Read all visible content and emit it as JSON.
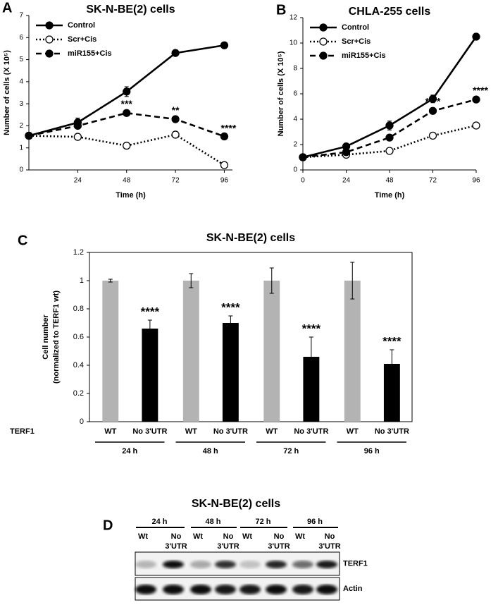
{
  "chart_data": [
    {
      "type": "line",
      "panel": "A",
      "title": "SK-N-BE(2) cells",
      "xlabel": "Time (h)",
      "ylabel": "Number of cells (X 10⁵)",
      "x": [
        0,
        24,
        48,
        72,
        96
      ],
      "xlim": [
        0,
        100
      ],
      "xticks": [
        24,
        48,
        72,
        96
      ],
      "ylim": [
        0,
        7
      ],
      "yticks": [
        0,
        1,
        2,
        3,
        4,
        5,
        6,
        7
      ],
      "legend": "top-left",
      "series": [
        {
          "name": "Control",
          "color": "#000000",
          "dash": "solid",
          "marker_fill": "#000000",
          "values": [
            1.55,
            2.15,
            3.55,
            5.3,
            5.65
          ],
          "errors": [
            0.08,
            0.2,
            0.22,
            0.08,
            0.12
          ]
        },
        {
          "name": "Scr+Cis",
          "color": "#000000",
          "dash": "dotted",
          "marker_fill": "#ffffff",
          "values": [
            1.55,
            1.5,
            1.1,
            1.6,
            0.22
          ],
          "errors": [
            0.06,
            0.1,
            0.12,
            0.1,
            0.05
          ]
        },
        {
          "name": "miR155+Cis",
          "color": "#000000",
          "dash": "dashed",
          "marker_fill": "#000000",
          "values": [
            1.55,
            2.0,
            2.58,
            2.3,
            1.52
          ],
          "errors": [
            0.06,
            0.1,
            0.1,
            0.08,
            0.06
          ],
          "annotations": [
            null,
            null,
            "***",
            "**",
            "****"
          ]
        }
      ]
    },
    {
      "type": "line",
      "panel": "B",
      "title": "CHLA-255 cells",
      "xlabel": "Time (h)",
      "ylabel": "Number of cells (X 10⁵)",
      "x": [
        0,
        24,
        48,
        72,
        96
      ],
      "xlim": [
        0,
        96
      ],
      "xticks": [
        0,
        24,
        48,
        72,
        96
      ],
      "ylim": [
        0,
        12
      ],
      "yticks": [
        0,
        2,
        4,
        6,
        8,
        10,
        12
      ],
      "legend": "top-left",
      "series": [
        {
          "name": "Control",
          "color": "#000000",
          "dash": "solid",
          "marker_fill": "#000000",
          "values": [
            1.0,
            1.85,
            3.5,
            5.6,
            10.5
          ],
          "errors": [
            0.1,
            0.2,
            0.35,
            0.3,
            0.25
          ]
        },
        {
          "name": "Scr+Cis",
          "color": "#000000",
          "dash": "dotted",
          "marker_fill": "#ffffff",
          "values": [
            1.0,
            1.2,
            1.5,
            2.7,
            3.5
          ],
          "errors": [
            0.1,
            0.1,
            0.15,
            0.15,
            0.1
          ]
        },
        {
          "name": "miR155+Cis",
          "color": "#000000",
          "dash": "dashed",
          "marker_fill": "#000000",
          "values": [
            1.0,
            1.4,
            2.55,
            4.65,
            5.55
          ],
          "errors": [
            0.1,
            0.1,
            0.2,
            0.2,
            0.15
          ],
          "annotations": [
            null,
            null,
            "*",
            "****",
            "****"
          ]
        }
      ]
    },
    {
      "type": "bar",
      "panel": "C",
      "title": "SK-N-BE(2) cells",
      "ylabel": [
        "Cell number",
        "(normalized to TERF1 wt)"
      ],
      "xlabel": "TERF1",
      "categories": [
        "24 h",
        "48 h",
        "72 h",
        "96 h"
      ],
      "ylim": [
        0,
        1.2
      ],
      "yticks": [
        0,
        0.2,
        0.4,
        0.6,
        0.8,
        1,
        1.2
      ],
      "series": [
        {
          "name": "WT",
          "color": "#b3b3b3",
          "values": [
            1,
            1,
            1,
            1
          ],
          "errors": [
            0.01,
            0.05,
            0.09,
            0.13
          ]
        },
        {
          "name": "No 3'UTR",
          "color": "#000000",
          "values": [
            0.66,
            0.7,
            0.46,
            0.41
          ],
          "errors": [
            0.06,
            0.05,
            0.14,
            0.1
          ],
          "annotations": [
            "****",
            "****",
            "****",
            "****"
          ]
        }
      ]
    }
  ],
  "blot": {
    "panel": "D",
    "title": "SK-N-BE(2) cells",
    "timepoints": [
      "24 h",
      "48 h",
      "72 h",
      "96 h"
    ],
    "lane_labels": [
      [
        "Wt"
      ],
      [
        "No",
        "3'UTR"
      ]
    ],
    "rows": [
      "TERF1",
      "Actin"
    ]
  }
}
